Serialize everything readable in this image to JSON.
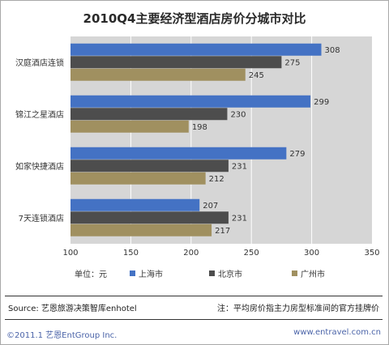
{
  "chart_data": {
    "type": "bar",
    "orientation": "horizontal",
    "title": "2010Q4主要经济型酒店房价分城市对比",
    "categories": [
      "汉庭酒店连锁",
      "锦江之星酒店",
      "如家快捷酒店",
      "7天连锁酒店"
    ],
    "series": [
      {
        "name": "上海市",
        "color": "#4472c4",
        "values": [
          308,
          299,
          279,
          207
        ]
      },
      {
        "name": "北京市",
        "color": "#4d4d4d",
        "values": [
          275,
          230,
          231,
          231
        ]
      },
      {
        "name": "广州市",
        "color": "#a09060",
        "values": [
          245,
          198,
          212,
          217
        ]
      }
    ],
    "xlim": [
      100,
      350
    ],
    "xticks": [
      "100",
      "150",
      "200",
      "250",
      "300",
      "350"
    ],
    "unit_label": "单位：元",
    "legend_position": "bottom",
    "grid": true
  },
  "source_text": "Source: 艺恩旅游决策智库enhotel",
  "note_text": "注：平均房价指主力房型标准间的官方挂牌价",
  "copyright_text": "©2011.1 艺恩EntGroup Inc.",
  "website_text": "www.entravel.com.cn",
  "colors": {
    "plot_bg": "#d6d6d6",
    "grid": "#ffffff"
  }
}
